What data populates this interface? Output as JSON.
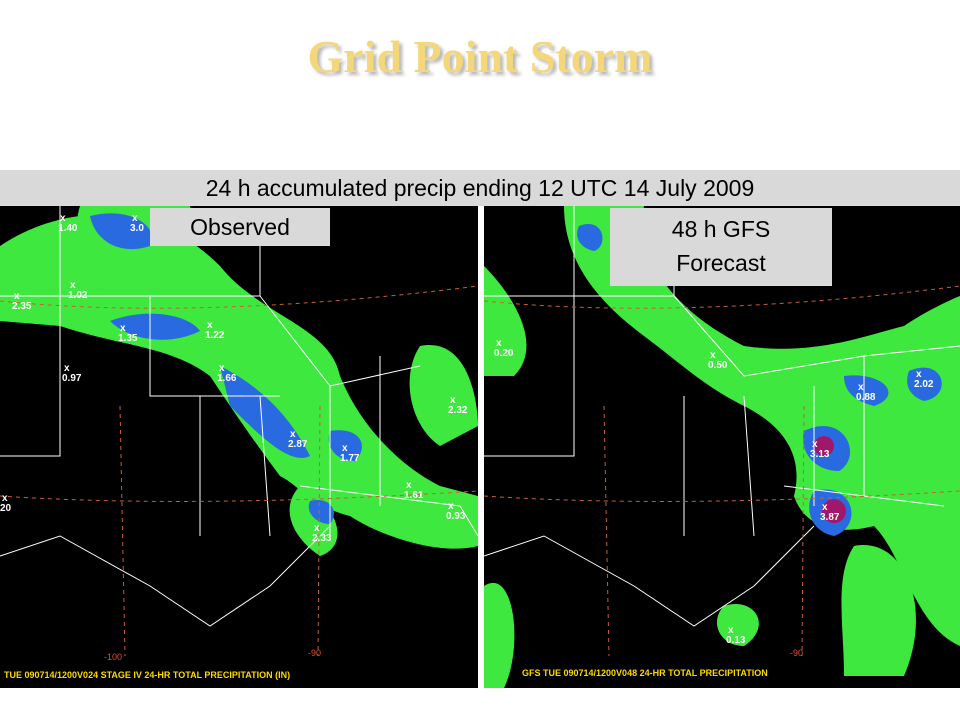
{
  "header": {
    "title": "Grid Point Storm"
  },
  "banner": "24 h accumulated precip ending 12 UTC 14 July 2009",
  "panels": [
    {
      "label": "Observed",
      "footer": "TUE 090714/1200V024  STAGE IV 24-HR TOTAL PRECIPITATION (IN)",
      "longitudes": [
        "-100",
        "-90"
      ],
      "points": [
        "1.40",
        "3.0",
        "1.02",
        "2.35",
        "1.35",
        "1.22",
        "0.97",
        "1.66",
        "2.87",
        "1.77",
        "2.32",
        "1.61",
        "0.93",
        "2.33",
        "20"
      ]
    },
    {
      "label": "48 h GFS Forecast",
      "footer": "GFS TUE 090714/1200V048  24-HR TOTAL PRECIPITATION",
      "longitudes": [
        "-90"
      ],
      "points": [
        "0.20",
        "0.50",
        "0.88",
        "2.02",
        "3.13",
        "3.87",
        "0.13"
      ]
    }
  ]
}
